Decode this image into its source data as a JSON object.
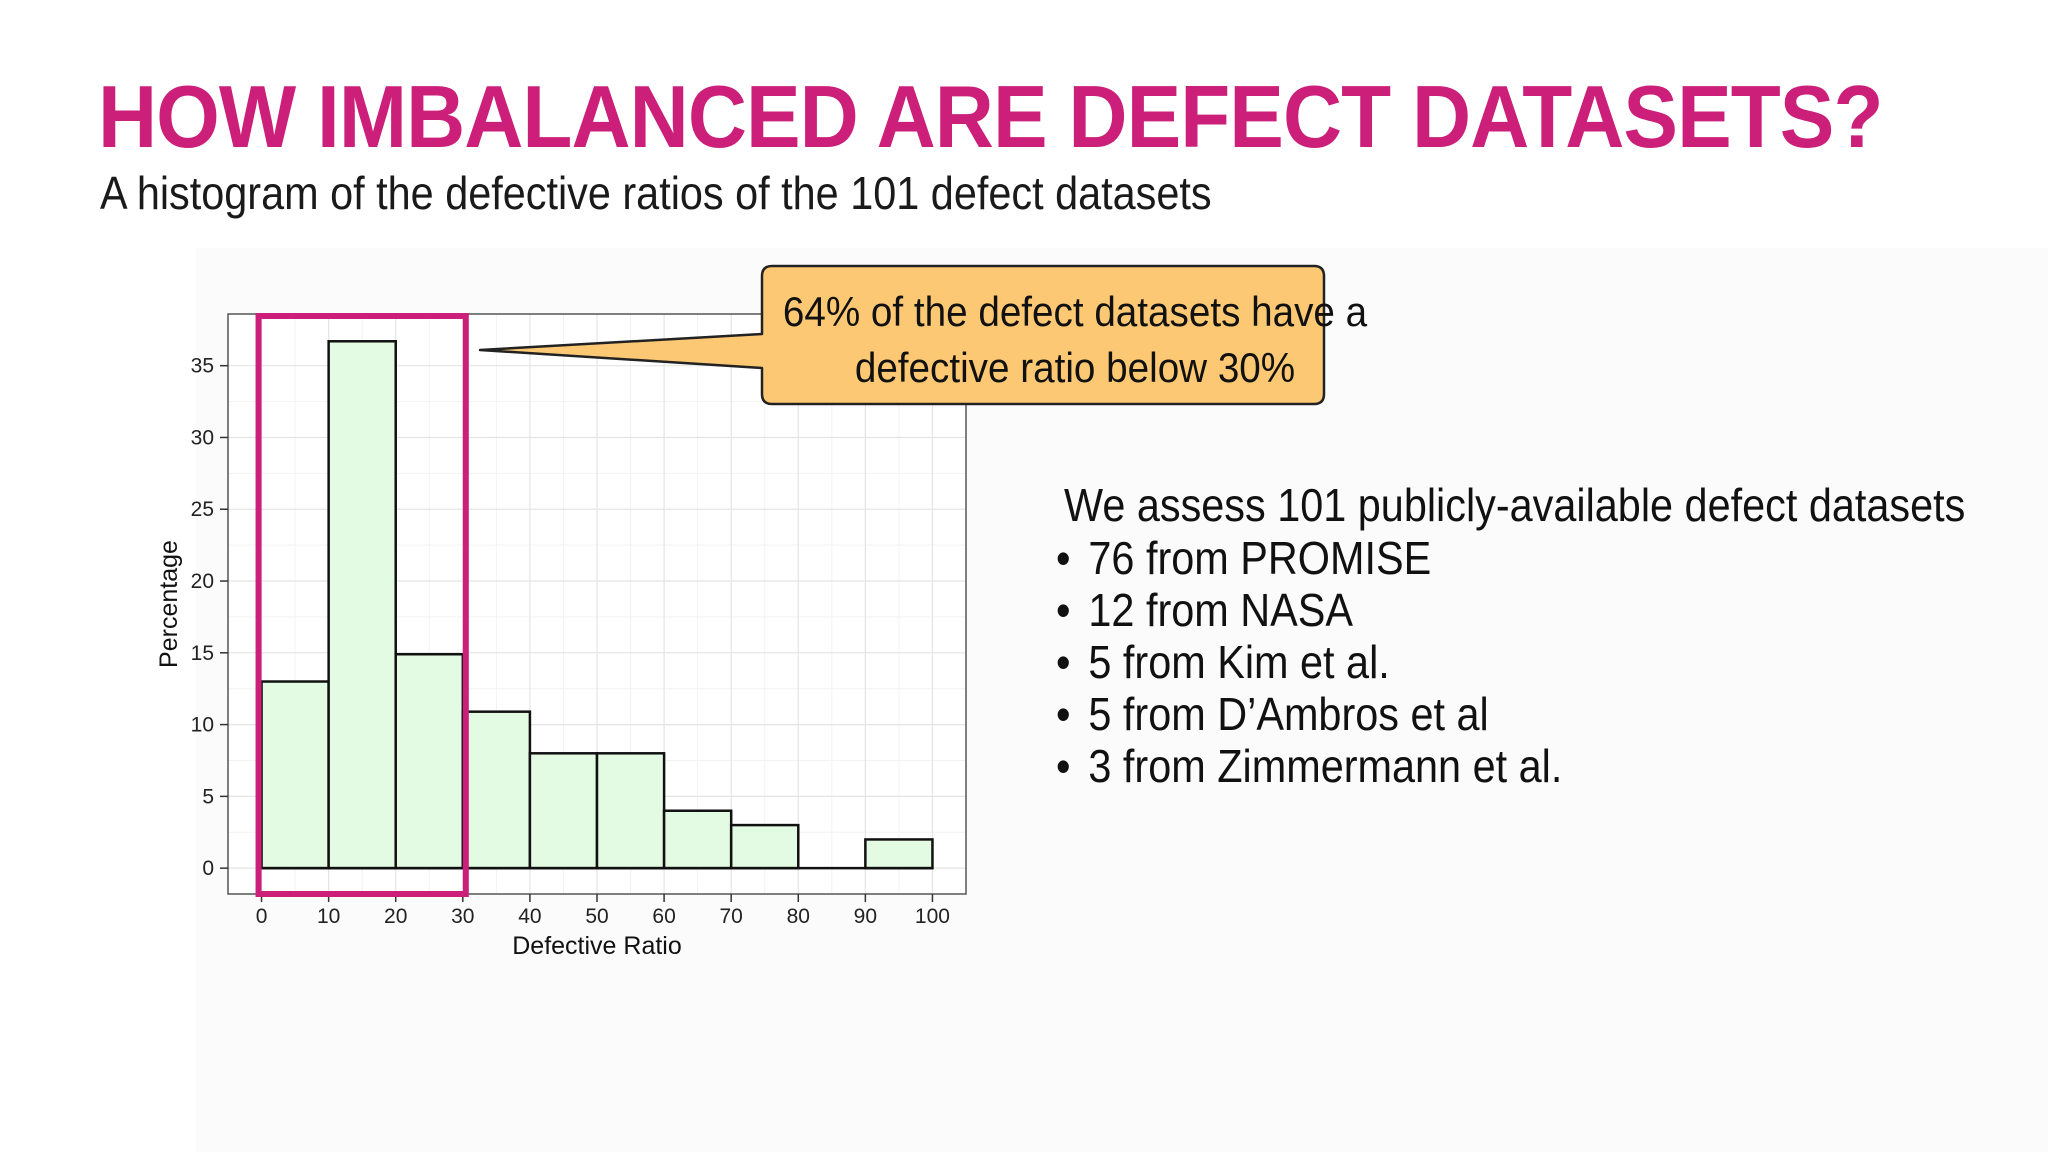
{
  "slide": {
    "title": "HOW IMBALANCED ARE DEFECT DATASETS?",
    "subtitle": "A histogram of the defective ratios of the 101 defect datasets",
    "callout": {
      "line1": "64% of the defect datasets have a",
      "line2": "defective ratio below 30%"
    },
    "intro": "We assess 101 publicly-available defect datasets",
    "bullets": [
      "76 from PROMISE",
      "12 from NASA",
      "5 from Kim et al.",
      "5 from D’Ambros et al",
      "3 from Zimmermann et al."
    ],
    "bullet_symbol": "•"
  },
  "colors": {
    "title": "#cc1f7a",
    "bar_fill": "#e3fbe3",
    "highlight_box": "#cc1f7a",
    "callout_fill": "#fcc873"
  },
  "chart_data": {
    "type": "bar",
    "histogram": true,
    "xlabel": "Defective Ratio",
    "ylabel": "Percentage",
    "bins": [
      {
        "start": 0,
        "end": 10,
        "value": 13
      },
      {
        "start": 10,
        "end": 20,
        "value": 36.7
      },
      {
        "start": 20,
        "end": 30,
        "value": 14.9
      },
      {
        "start": 30,
        "end": 40,
        "value": 10.9
      },
      {
        "start": 40,
        "end": 50,
        "value": 8
      },
      {
        "start": 50,
        "end": 60,
        "value": 8
      },
      {
        "start": 60,
        "end": 70,
        "value": 4
      },
      {
        "start": 70,
        "end": 80,
        "value": 3
      },
      {
        "start": 80,
        "end": 90,
        "value": 0
      },
      {
        "start": 90,
        "end": 100,
        "value": 2
      }
    ],
    "xticks": [
      0,
      10,
      20,
      30,
      40,
      50,
      60,
      70,
      80,
      90,
      100
    ],
    "yticks": [
      0,
      5,
      10,
      15,
      20,
      25,
      30,
      35
    ],
    "xlim": [
      -5,
      105
    ],
    "ylim": [
      -1.8,
      38.6
    ],
    "grid": true,
    "highlight_range": [
      0,
      30
    ]
  }
}
